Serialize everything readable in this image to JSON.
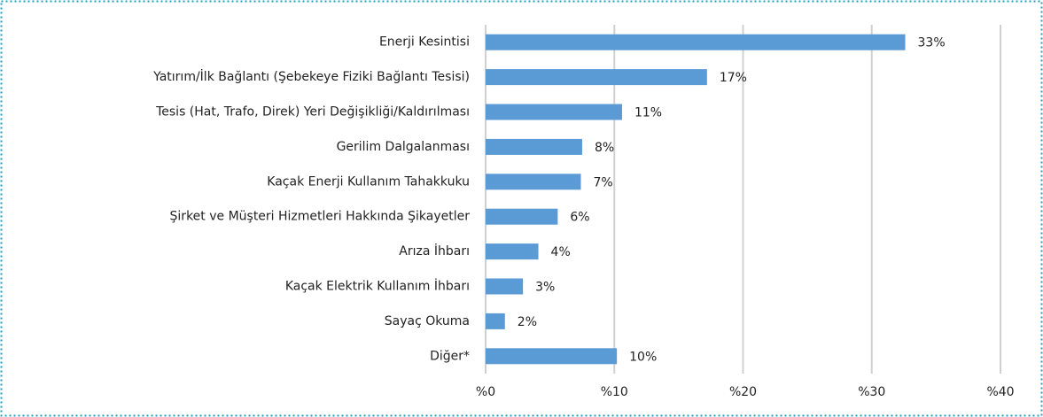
{
  "chart_data": {
    "type": "hbar",
    "categories": [
      "Enerji Kesintisi",
      "Yatırım/İlk Bağlantı (Şebekeye Fiziki Bağlantı Tesisi)",
      "Tesis (Hat, Trafo, Direk) Yeri Değişikliği/Kaldırılması",
      "Gerilim Dalgalanması",
      "Kaçak Enerji Kullanım Tahakkuku",
      "Şirket ve Müşteri Hizmetleri Hakkında Şikayetler",
      "Arıza İhbarı",
      "Kaçak Elektrik Kullanım İhbarı",
      "Sayaç Okuma",
      "Diğer*"
    ],
    "values": [
      32.6,
      17.2,
      10.6,
      7.5,
      7.4,
      5.6,
      4.1,
      2.9,
      1.5,
      10.2
    ],
    "value_labels": [
      "33%",
      "17%",
      "11%",
      "8%",
      "7%",
      "6%",
      "4%",
      "3%",
      "2%",
      "10%"
    ],
    "color": "#5b9bd5",
    "xlim": [
      0,
      40
    ],
    "xticks": [
      {
        "value": 0,
        "label": "%0"
      },
      {
        "value": 10,
        "label": "%10"
      },
      {
        "value": 20,
        "label": "%20"
      },
      {
        "value": 30,
        "label": "%30"
      },
      {
        "value": 40,
        "label": "%40"
      }
    ],
    "grid": true
  }
}
